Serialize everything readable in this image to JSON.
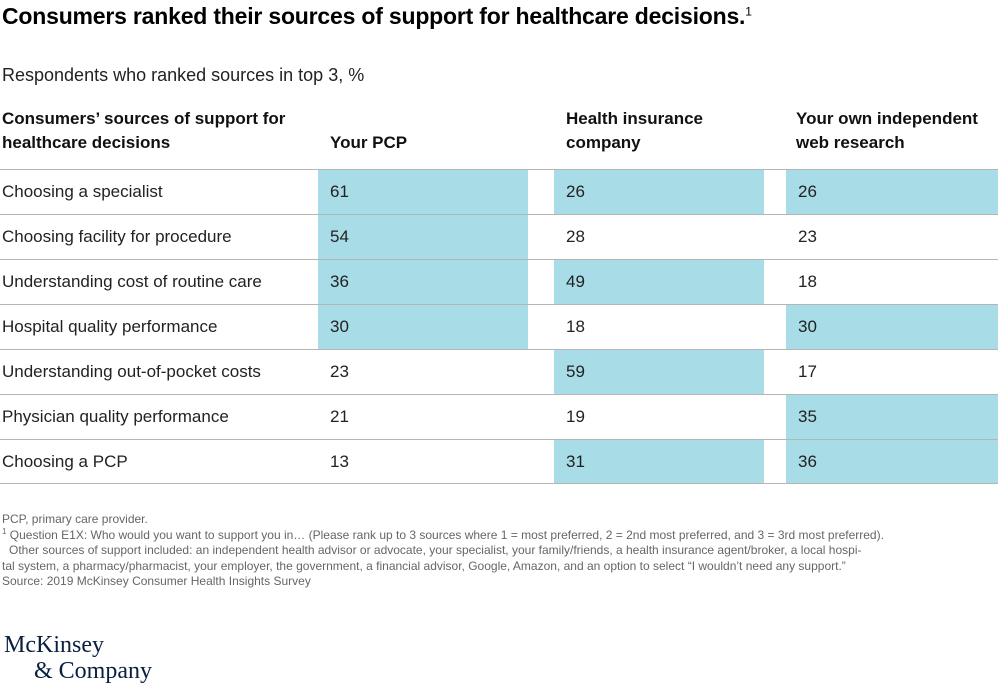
{
  "chart_data": {
    "type": "table",
    "title": "Consumers ranked their sources of support for healthcare decisions.",
    "title_footnote": "1",
    "subtitle": "Respondents who ranked sources in top 3, %",
    "header": {
      "row_label": "Consumers’ sources of support for healthcare decisions",
      "columns": [
        "Your PCP",
        "Health insurance company",
        "Your own independent web research"
      ]
    },
    "rows": [
      {
        "label": "Choosing a specialist",
        "values": [
          61,
          26,
          26
        ],
        "highlight": [
          true,
          true,
          true
        ]
      },
      {
        "label": "Choosing facility for procedure",
        "values": [
          54,
          28,
          23
        ],
        "highlight": [
          true,
          false,
          false
        ]
      },
      {
        "label": "Understanding cost of routine care",
        "values": [
          36,
          49,
          18
        ],
        "highlight": [
          true,
          true,
          false
        ]
      },
      {
        "label": "Hospital quality performance",
        "values": [
          30,
          18,
          30
        ],
        "highlight": [
          true,
          false,
          true
        ]
      },
      {
        "label": "Understanding out-of-pocket costs",
        "values": [
          23,
          59,
          17
        ],
        "highlight": [
          false,
          true,
          false
        ]
      },
      {
        "label": "Physician quality performance",
        "values": [
          21,
          19,
          35
        ],
        "highlight": [
          false,
          false,
          true
        ]
      },
      {
        "label": "Choosing a PCP",
        "values": [
          13,
          31,
          36
        ],
        "highlight": [
          false,
          true,
          true
        ]
      }
    ],
    "highlight_meaning": "top 3",
    "highlight_color": "#a8dde8",
    "notes": {
      "abbrev": "PCP, primary care provider.",
      "footnote_marker": "1",
      "footnote_line1": "Question E1X: Who would you want to support you in… (Please rank up to 3 sources where 1 = most preferred, 2 = 2nd most preferred, and 3 = 3rd most preferred).",
      "footnote_line2": "Other sources of support included: an independent health advisor or advocate, your specialist, your family/friends, a health insurance agent/broker, a local hospi-",
      "footnote_line3": "tal system, a pharmacy/pharmacist, your employer, the government, a financial advisor, Google, Amazon, and an option to select “I wouldn’t need any support.”",
      "source": "Source: 2019 McKinsey Consumer Health Insights Survey"
    },
    "logo": {
      "line1": "McKinsey",
      "line2": "& Company"
    }
  }
}
